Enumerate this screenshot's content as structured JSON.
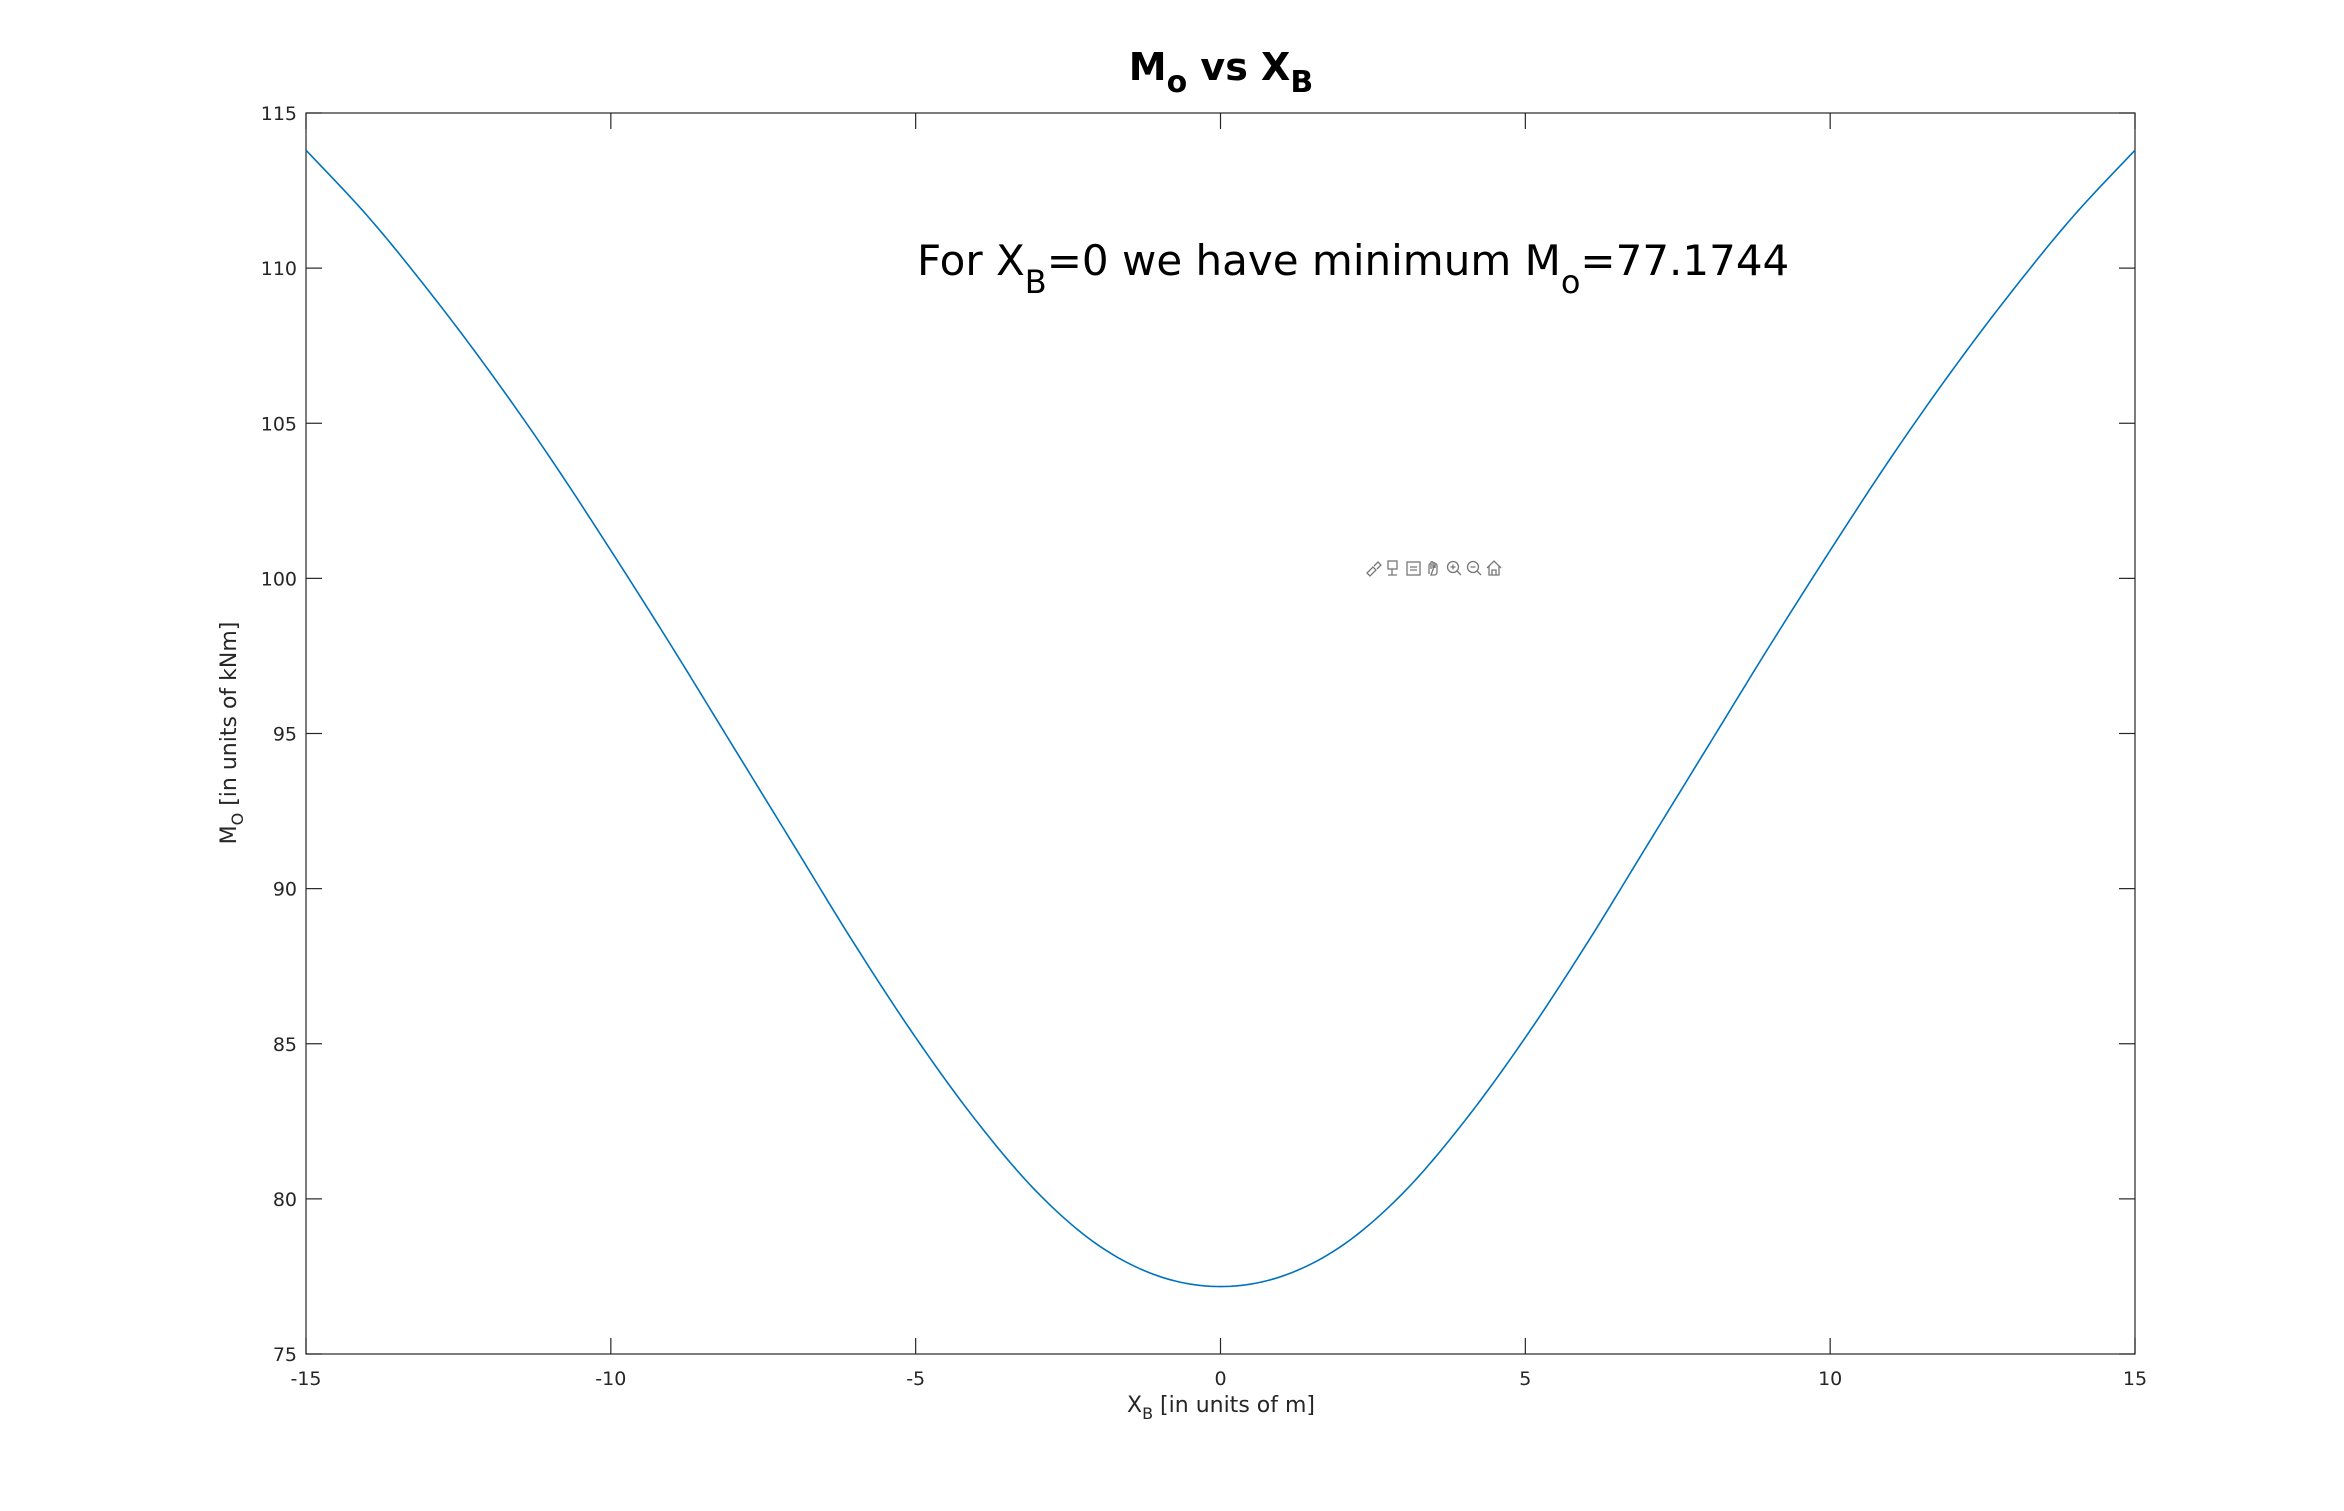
{
  "chart_data": {
    "type": "line",
    "title": {
      "main": "M",
      "sub1": "o",
      "mid": " vs X",
      "sub2": "B"
    },
    "xlabel": {
      "main": "X",
      "sub": "B",
      "rest": " [in units of m]"
    },
    "ylabel": {
      "main": "M",
      "sub": "O",
      "rest": " [in units of kNm]"
    },
    "xlim": [
      -15,
      15
    ],
    "ylim": [
      75,
      115
    ],
    "xticks": [
      -15,
      -10,
      -5,
      0,
      5,
      10,
      15
    ],
    "yticks": [
      75,
      80,
      85,
      90,
      95,
      100,
      105,
      110,
      115
    ],
    "xtick_labels": [
      "-15",
      "-10",
      "-5",
      "0",
      "5",
      "10",
      "15"
    ],
    "ytick_labels": [
      "75",
      "80",
      "85",
      "90",
      "95",
      "100",
      "105",
      "110",
      "115"
    ],
    "grid": false,
    "series": [
      {
        "color": "#0072BD",
        "x": [
          -15,
          -14,
          -13,
          -12,
          -11,
          -10,
          -9,
          -8,
          -7,
          -6,
          -5,
          -4,
          -3,
          -2,
          -1,
          0,
          1,
          2,
          3,
          4,
          5,
          6,
          7,
          8,
          9,
          10,
          11,
          12,
          13,
          14,
          15
        ],
        "y": [
          113.8,
          111.7,
          109.3,
          106.7,
          103.9,
          100.9,
          97.8,
          94.6,
          91.4,
          88.2,
          85.2,
          82.5,
          80.2,
          78.5,
          77.5,
          77.1744,
          77.5,
          78.5,
          80.2,
          82.5,
          85.2,
          88.2,
          91.4,
          94.6,
          97.8,
          100.9,
          103.9,
          106.7,
          109.3,
          111.7,
          113.8
        ]
      }
    ],
    "annotation": {
      "part1": "For X",
      "sub1": "B",
      "part2": "=0 we have minimum M",
      "sub2": "o",
      "part3": "=77.1744"
    }
  },
  "toolbar": {
    "icons": [
      "brush-icon",
      "datatip-icon",
      "save-icon",
      "pan-icon",
      "zoom-in-icon",
      "zoom-out-icon",
      "home-icon"
    ]
  }
}
